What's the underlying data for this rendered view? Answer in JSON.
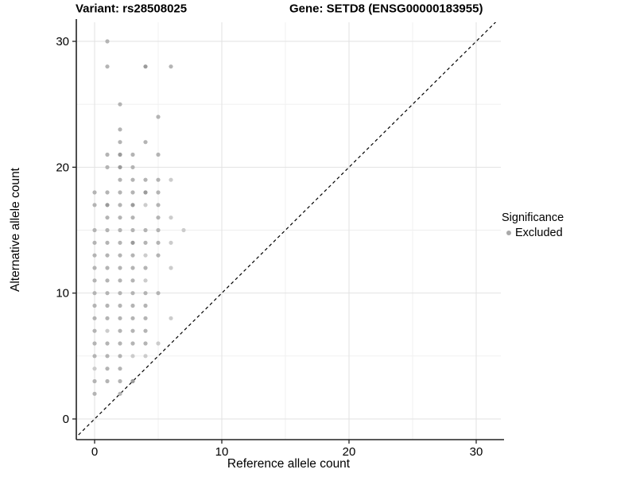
{
  "chart_data": {
    "type": "scatter",
    "title_left": "Variant: rs28508025",
    "title_right": "Gene: SETD8 (ENSG00000183955)",
    "xlabel": "Reference allele count",
    "ylabel": "Alternative allele count",
    "xlim": [
      -1.5,
      32
    ],
    "ylim": [
      -1.6,
      31.5
    ],
    "x_ticks": [
      0,
      10,
      20,
      30
    ],
    "y_ticks": [
      0,
      10,
      20,
      30
    ],
    "x_minor_ticks": [
      5,
      15,
      25
    ],
    "y_minor_ticks": [
      5,
      15,
      25
    ],
    "grid": true,
    "identity_line": {
      "style": "dashed",
      "equation": "y = x",
      "color": "#000000"
    },
    "legend": {
      "position": "right",
      "title": "Significance",
      "entries": [
        {
          "label": "Excluded",
          "color": "#a9a9a9",
          "marker": "dot"
        }
      ]
    },
    "point_colors": {
      "normal": "#b4b4b4",
      "dark": "#9b9b9b",
      "light": "#cccccc"
    },
    "series": [
      {
        "name": "Excluded",
        "points": [
          [
            1,
            30,
            0
          ],
          [
            1,
            28,
            0
          ],
          [
            4,
            28,
            1
          ],
          [
            6,
            28,
            0
          ],
          [
            2,
            25,
            0
          ],
          [
            5,
            24,
            0
          ],
          [
            2,
            23,
            0
          ],
          [
            2,
            22,
            0
          ],
          [
            4,
            22,
            0
          ],
          [
            1,
            21,
            0
          ],
          [
            2,
            21,
            1
          ],
          [
            3,
            21,
            0
          ],
          [
            5,
            21,
            0
          ],
          [
            1,
            20,
            0
          ],
          [
            2,
            20,
            1
          ],
          [
            3,
            20,
            0
          ],
          [
            2,
            19,
            0
          ],
          [
            3,
            19,
            0
          ],
          [
            4,
            19,
            0
          ],
          [
            5,
            19,
            0
          ],
          [
            6,
            19,
            -1
          ],
          [
            0,
            18,
            0
          ],
          [
            1,
            18,
            0
          ],
          [
            2,
            18,
            0
          ],
          [
            3,
            18,
            0
          ],
          [
            4,
            18,
            1
          ],
          [
            5,
            18,
            0
          ],
          [
            0,
            17,
            0
          ],
          [
            1,
            17,
            1
          ],
          [
            2,
            17,
            0
          ],
          [
            3,
            17,
            1
          ],
          [
            4,
            17,
            -1
          ],
          [
            5,
            17,
            0
          ],
          [
            1,
            16,
            0
          ],
          [
            2,
            16,
            0
          ],
          [
            3,
            16,
            0
          ],
          [
            5,
            16,
            0
          ],
          [
            6,
            16,
            -1
          ],
          [
            0,
            15,
            0
          ],
          [
            1,
            15,
            0
          ],
          [
            2,
            15,
            0
          ],
          [
            3,
            15,
            0
          ],
          [
            4,
            15,
            0
          ],
          [
            5,
            15,
            0
          ],
          [
            7,
            15,
            -1
          ],
          [
            0,
            14,
            0
          ],
          [
            1,
            14,
            0
          ],
          [
            2,
            14,
            0
          ],
          [
            3,
            14,
            1
          ],
          [
            4,
            14,
            0
          ],
          [
            5,
            14,
            0
          ],
          [
            6,
            14,
            -1
          ],
          [
            0,
            13,
            0
          ],
          [
            1,
            13,
            0
          ],
          [
            2,
            13,
            0
          ],
          [
            3,
            13,
            0
          ],
          [
            4,
            13,
            -1
          ],
          [
            5,
            13,
            0
          ],
          [
            0,
            12,
            0
          ],
          [
            1,
            12,
            0
          ],
          [
            2,
            12,
            0
          ],
          [
            3,
            12,
            0
          ],
          [
            4,
            12,
            0
          ],
          [
            6,
            12,
            -1
          ],
          [
            0,
            11,
            0
          ],
          [
            1,
            11,
            0
          ],
          [
            2,
            11,
            0
          ],
          [
            3,
            11,
            0
          ],
          [
            4,
            11,
            -1
          ],
          [
            0,
            10,
            0
          ],
          [
            1,
            10,
            0
          ],
          [
            2,
            10,
            0
          ],
          [
            3,
            10,
            0
          ],
          [
            4,
            10,
            0
          ],
          [
            5,
            10,
            0
          ],
          [
            0,
            9,
            0
          ],
          [
            1,
            9,
            0
          ],
          [
            2,
            9,
            0
          ],
          [
            3,
            9,
            0
          ],
          [
            4,
            9,
            0
          ],
          [
            0,
            8,
            0
          ],
          [
            1,
            8,
            0
          ],
          [
            2,
            8,
            0
          ],
          [
            3,
            8,
            0
          ],
          [
            4,
            8,
            0
          ],
          [
            6,
            8,
            -1
          ],
          [
            0,
            7,
            0
          ],
          [
            1,
            7,
            -1
          ],
          [
            2,
            7,
            0
          ],
          [
            3,
            7,
            0
          ],
          [
            4,
            7,
            0
          ],
          [
            0,
            6,
            0
          ],
          [
            1,
            6,
            0
          ],
          [
            2,
            6,
            0
          ],
          [
            3,
            6,
            0
          ],
          [
            4,
            6,
            0
          ],
          [
            5,
            6,
            -1
          ],
          [
            0,
            5,
            0
          ],
          [
            1,
            5,
            0
          ],
          [
            2,
            5,
            0
          ],
          [
            3,
            5,
            -1
          ],
          [
            4,
            5,
            -1
          ],
          [
            0,
            4,
            -1
          ],
          [
            1,
            4,
            0
          ],
          [
            2,
            4,
            0
          ],
          [
            0,
            3,
            0
          ],
          [
            1,
            3,
            0
          ],
          [
            2,
            3,
            0
          ],
          [
            3,
            3,
            1
          ],
          [
            0,
            2,
            0
          ],
          [
            2,
            2,
            0
          ]
        ]
      }
    ],
    "colors": {
      "grid_major": "#e2e2e2",
      "grid_minor": "#efefef",
      "axis_line": "#222222",
      "text": "#000000"
    }
  }
}
